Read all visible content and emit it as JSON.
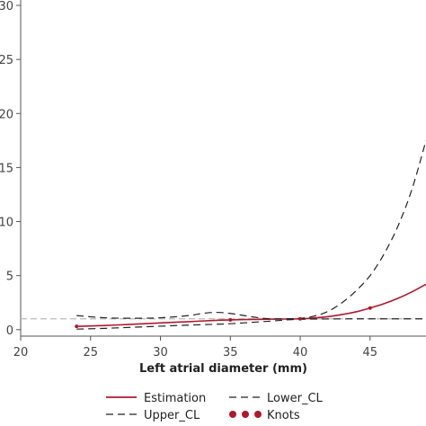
{
  "chart_data": {
    "type": "line",
    "title": "",
    "xlabel": "Left atrial diameter (mm)",
    "ylabel": "",
    "xlim": [
      20,
      49
    ],
    "ylim": [
      -0.6,
      30.5
    ],
    "xticks": [
      20,
      25,
      30,
      35,
      40,
      45
    ],
    "yticks": [
      0,
      5,
      10,
      15,
      20,
      25,
      30
    ],
    "grid": false,
    "legend_position": "bottom",
    "reference_line": {
      "y": 1,
      "color": "#bbbbbb",
      "style": "dashed"
    },
    "series": [
      {
        "name": "Estimation",
        "style": "solid",
        "color": "#b0182e",
        "points": [
          [
            24,
            0.3
          ],
          [
            26,
            0.38
          ],
          [
            28,
            0.5
          ],
          [
            30,
            0.62
          ],
          [
            32,
            0.74
          ],
          [
            34,
            0.86
          ],
          [
            35,
            0.9
          ],
          [
            36,
            0.93
          ],
          [
            38,
            0.97
          ],
          [
            40,
            1.0
          ],
          [
            41,
            1.08
          ],
          [
            42,
            1.2
          ],
          [
            43,
            1.4
          ],
          [
            44,
            1.65
          ],
          [
            45,
            2.0
          ],
          [
            46,
            2.4
          ],
          [
            47,
            2.9
          ],
          [
            48,
            3.5
          ],
          [
            49,
            4.2
          ]
        ]
      },
      {
        "name": "Upper_CL",
        "style": "dashed",
        "color": "#222222",
        "points": [
          [
            24,
            1.3
          ],
          [
            26,
            1.1
          ],
          [
            28,
            1.05
          ],
          [
            30,
            1.1
          ],
          [
            32,
            1.3
          ],
          [
            33,
            1.5
          ],
          [
            34,
            1.6
          ],
          [
            35,
            1.5
          ],
          [
            36,
            1.3
          ],
          [
            37,
            1.1
          ],
          [
            38,
            1.0
          ],
          [
            40,
            1.05
          ],
          [
            41,
            1.25
          ],
          [
            42,
            1.7
          ],
          [
            43,
            2.5
          ],
          [
            44,
            3.6
          ],
          [
            45,
            5.0
          ],
          [
            46,
            7.0
          ],
          [
            47,
            9.6
          ],
          [
            48,
            13.0
          ],
          [
            49,
            17.5
          ]
        ]
      },
      {
        "name": "Lower_CL",
        "style": "dashed",
        "color": "#222222",
        "points": [
          [
            24,
            0.05
          ],
          [
            26,
            0.12
          ],
          [
            28,
            0.22
          ],
          [
            30,
            0.32
          ],
          [
            32,
            0.42
          ],
          [
            34,
            0.5
          ],
          [
            35,
            0.55
          ],
          [
            36,
            0.63
          ],
          [
            38,
            0.8
          ],
          [
            39,
            0.9
          ],
          [
            40,
            0.96
          ],
          [
            41,
            0.98
          ],
          [
            42,
            0.99
          ],
          [
            44,
            1.0
          ],
          [
            46,
            1.0
          ],
          [
            49,
            1.0
          ]
        ]
      },
      {
        "name": "Knots",
        "style": "markers",
        "color": "#b0182e",
        "points": [
          [
            24,
            0.3
          ],
          [
            35,
            0.9
          ],
          [
            40,
            1.0
          ],
          [
            45,
            2.0
          ]
        ]
      }
    ]
  }
}
